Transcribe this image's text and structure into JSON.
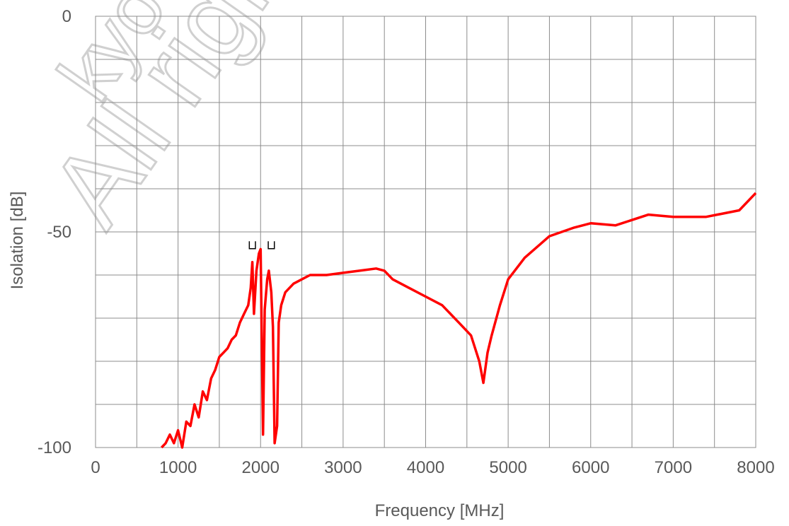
{
  "chart_data": {
    "type": "line",
    "xlabel": "Frequency [MHz]",
    "ylabel": "Isolation  [dB]",
    "xlim": [
      0,
      8000
    ],
    "ylim": [
      -100,
      0
    ],
    "x_ticks": [
      0,
      1000,
      2000,
      3000,
      4000,
      5000,
      6000,
      7000,
      8000
    ],
    "x_tick_labels": [
      "0",
      "1000",
      "2000",
      "3000",
      "4000",
      "5000",
      "6000",
      "7000",
      "8000"
    ],
    "y_ticks": [
      0,
      -50,
      -100
    ],
    "y_tick_labels": [
      "0",
      "-50",
      "-100"
    ],
    "grid": true,
    "series": [
      {
        "color": "#ff0000",
        "x": [
          800,
          850,
          900,
          950,
          1000,
          1050,
          1100,
          1150,
          1200,
          1250,
          1300,
          1350,
          1400,
          1450,
          1500,
          1550,
          1600,
          1650,
          1700,
          1750,
          1800,
          1850,
          1880,
          1900,
          1920,
          1950,
          1980,
          2000,
          2030,
          2050,
          2080,
          2100,
          2130,
          2150,
          2170,
          2200,
          2220,
          2250,
          2300,
          2400,
          2500,
          2600,
          2800,
          3000,
          3200,
          3400,
          3500,
          3600,
          3800,
          4000,
          4200,
          4400,
          4550,
          4650,
          4700,
          4750,
          4800,
          4900,
          5000,
          5200,
          5500,
          5800,
          6000,
          6300,
          6700,
          7000,
          7400,
          7800,
          8000
        ],
        "y": [
          -100,
          -99,
          -97,
          -99,
          -96,
          -100,
          -94,
          -95,
          -90,
          -93,
          -87,
          -89,
          -84,
          -82,
          -79,
          -78,
          -77,
          -75,
          -74,
          -71,
          -69,
          -67,
          -63,
          -57,
          -69,
          -59,
          -55,
          -54,
          -97,
          -68,
          -61,
          -59,
          -64,
          -72,
          -99,
          -95,
          -71,
          -67,
          -64,
          -62,
          -61,
          -60,
          -60,
          -59.5,
          -59,
          -58.5,
          -59,
          -61,
          -63,
          -65,
          -67,
          -71,
          -74,
          -80,
          -85,
          -78,
          -74,
          -67,
          -61,
          -56,
          -51,
          -49,
          -48,
          -48.5,
          -46,
          -46.5,
          -46.5,
          -45,
          -41
        ]
      }
    ],
    "annotations": [
      {
        "text": "⊔",
        "x": 1900,
        "y": -54
      },
      {
        "text": "⊔",
        "x": 2130,
        "y": -54
      }
    ]
  }
}
